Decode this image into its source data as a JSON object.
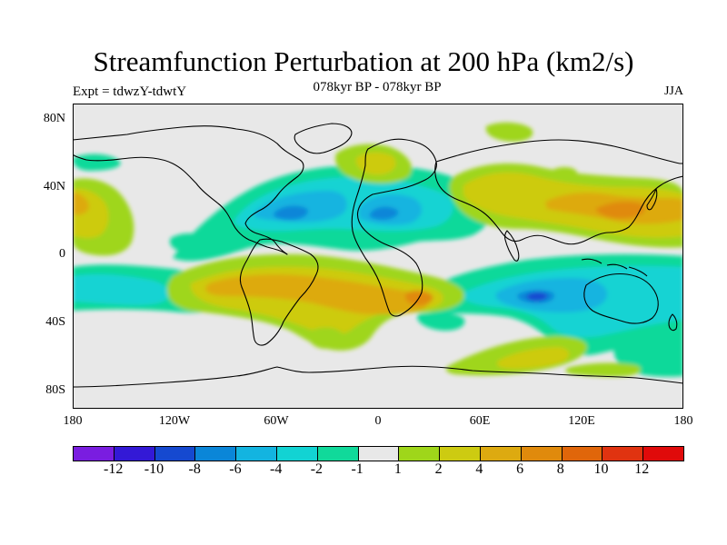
{
  "title": "Streamfunction Perturbation at 200 hPa (km2/s)",
  "expt_label": "Expt = tdwzY-tdwtY",
  "period_label": "078kyr BP - 078kyr BP",
  "season_label": "JJA",
  "lat_ticks": [
    "80N",
    "40N",
    "0",
    "40S",
    "80S"
  ],
  "lon_ticks": [
    "180",
    "120W",
    "60W",
    "0",
    "60E",
    "120E",
    "180"
  ],
  "colorbar": {
    "colors": [
      "#7a1de0",
      "#3319d6",
      "#1549d0",
      "#0a86d8",
      "#13b4e0",
      "#12d3d3",
      "#10d99a",
      "#e8e8e8",
      "#9fd61a",
      "#cdcb11",
      "#ddaa10",
      "#e08a0c",
      "#e0660a",
      "#e03310",
      "#e00a0a"
    ],
    "labels": [
      "-12",
      "-10",
      "-8",
      "-6",
      "-4",
      "-2",
      "-1",
      "1",
      "2",
      "4",
      "6",
      "8",
      "10",
      "12"
    ]
  },
  "map_background": "#e8e8e8"
}
